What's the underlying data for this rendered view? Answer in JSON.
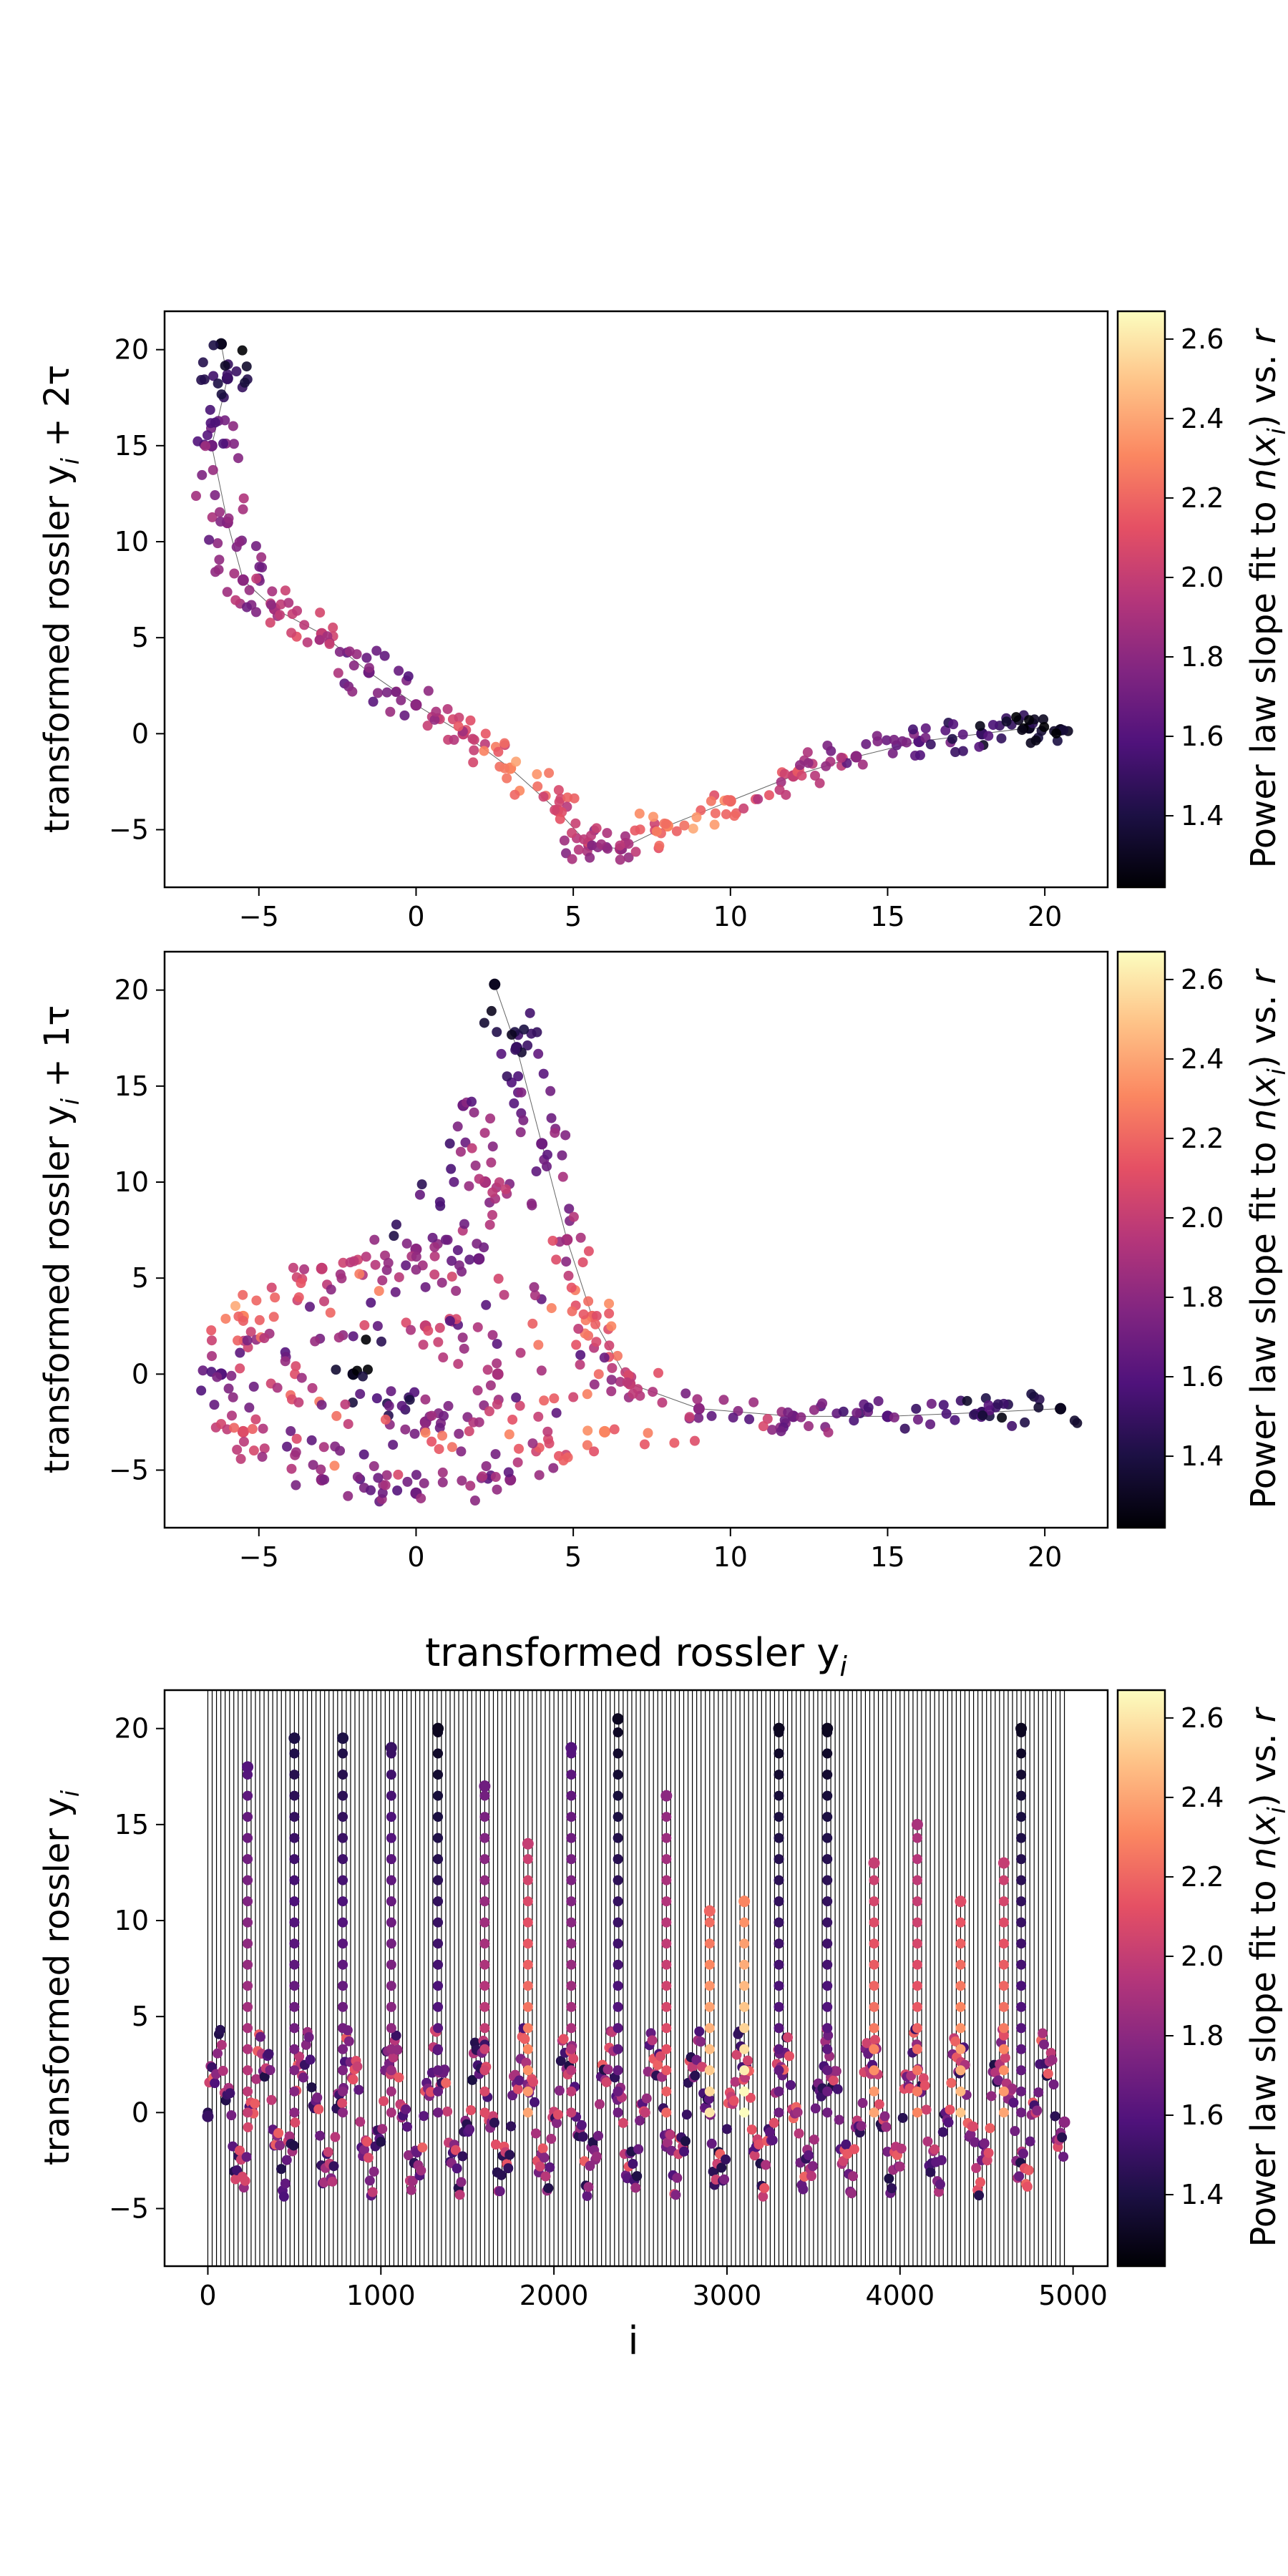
{
  "chart_data": [
    {
      "type": "scatter",
      "title": "",
      "xlabel": "",
      "ylabel": "transformed rossler y_i + 2τ",
      "ylabel_parts": [
        "transformed rossler y",
        "i",
        " + 2τ"
      ],
      "xlim": [
        -8,
        22
      ],
      "ylim": [
        -8,
        22
      ],
      "xticks": [
        -5,
        0,
        5,
        10,
        15,
        20
      ],
      "yticks": [
        -5,
        0,
        5,
        10,
        15,
        20
      ],
      "xtick_labels": [
        "−5",
        "0",
        "5",
        "10",
        "15",
        "20"
      ],
      "ytick_labels": [
        "−5",
        "0",
        "5",
        "10",
        "15",
        "20"
      ],
      "series": [
        {
          "points": [
            [
              -6.2,
              20.3
            ],
            [
              -6.0,
              18.5
            ],
            [
              -6.5,
              15.0
            ],
            [
              -6.0,
              11.0
            ],
            [
              -5.5,
              8.0
            ],
            [
              -4.5,
              6.5
            ],
            [
              -3.0,
              5.2
            ],
            [
              -1.5,
              3.2
            ],
            [
              0.0,
              1.5
            ],
            [
              1.5,
              0.0
            ],
            [
              3.0,
              -1.8
            ],
            [
              4.5,
              -4.0
            ],
            [
              5.5,
              -5.8
            ],
            [
              6.5,
              -6.0
            ],
            [
              8.0,
              -4.8
            ],
            [
              10.0,
              -3.5
            ],
            [
              12.0,
              -2.2
            ],
            [
              14.0,
              -1.2
            ],
            [
              16.0,
              -0.4
            ],
            [
              18.0,
              0.0
            ],
            [
              19.5,
              0.3
            ],
            [
              20.5,
              0.2
            ]
          ],
          "color_values": [
            1.3,
            1.5,
            1.7,
            1.8,
            1.8,
            1.9,
            2.0,
            1.7,
            1.8,
            2.0,
            2.3,
            2.1,
            1.9,
            1.9,
            2.3,
            2.2,
            2.0,
            1.8,
            1.6,
            1.5,
            1.3,
            1.3
          ]
        }
      ],
      "colorbar": {
        "label": "Power law slope fit to n(x_i) vs. r",
        "label_parts": [
          "Power law slope fit to ",
          "n",
          "(",
          "x",
          "i",
          ") vs. ",
          "r"
        ],
        "range": [
          1.22,
          2.67
        ],
        "ticks": [
          1.4,
          1.6,
          1.8,
          2.0,
          2.2,
          2.4,
          2.6
        ],
        "tick_labels": [
          "1.4",
          "1.6",
          "1.8",
          "2.0",
          "2.2",
          "2.4",
          "2.6"
        ],
        "colormap": "magma"
      }
    },
    {
      "type": "scatter",
      "title": "",
      "xlabel": "transformed rossler y_i",
      "xlabel_parts": [
        "transformed rossler y",
        "i"
      ],
      "ylabel": "transformed rossler y_i + 1τ",
      "ylabel_parts": [
        "transformed rossler y",
        "i",
        " + 1τ"
      ],
      "xlim": [
        -8,
        22
      ],
      "ylim": [
        -8,
        22
      ],
      "xticks": [
        -5,
        0,
        5,
        10,
        15,
        20
      ],
      "yticks": [
        -5,
        0,
        5,
        10,
        15,
        20
      ],
      "xtick_labels": [
        "−5",
        "0",
        "5",
        "10",
        "15",
        "20"
      ],
      "ytick_labels": [
        "−5",
        "0",
        "5",
        "10",
        "15",
        "20"
      ],
      "series": [
        {
          "points": [
            [
              2.5,
              20.3
            ],
            [
              3.2,
              17.0
            ],
            [
              4.0,
              12.0
            ],
            [
              4.8,
              7.0
            ],
            [
              5.6,
              3.0
            ],
            [
              6.8,
              -0.5
            ],
            [
              9.0,
              -1.8
            ],
            [
              12.0,
              -2.2
            ],
            [
              15.0,
              -2.2
            ],
            [
              18.0,
              -2.0
            ],
            [
              20.5,
              -1.8
            ],
            [
              6.0,
              -3.0
            ],
            [
              3.0,
              -5.5
            ],
            [
              0.0,
              -6.2
            ],
            [
              -3.0,
              -5.5
            ],
            [
              -5.5,
              -3.0
            ],
            [
              -6.2,
              0.0
            ],
            [
              -5.5,
              3.0
            ],
            [
              -3.0,
              5.5
            ],
            [
              0.0,
              6.5
            ],
            [
              2.0,
              6.0
            ],
            [
              2.2,
              10.0
            ],
            [
              1.5,
              14.0
            ],
            [
              -2.0,
              0.0
            ],
            [
              0.3,
              -2.5
            ],
            [
              2.6,
              0.0
            ],
            [
              0.3,
              2.5
            ]
          ],
          "color_values": [
            1.3,
            1.5,
            1.7,
            1.9,
            2.2,
            2.0,
            1.8,
            1.7,
            1.6,
            1.5,
            1.3,
            2.3,
            1.8,
            1.7,
            1.8,
            2.1,
            1.6,
            2.3,
            2.0,
            1.8,
            1.7,
            1.9,
            1.7,
            1.3,
            1.8,
            1.9,
            2.0
          ]
        }
      ],
      "colorbar": {
        "label": "Power law slope fit to n(x_i) vs. r",
        "label_parts": [
          "Power law slope fit to ",
          "n",
          "(",
          "x",
          "i",
          ") vs. ",
          "r"
        ],
        "range": [
          1.22,
          2.67
        ],
        "ticks": [
          1.4,
          1.6,
          1.8,
          2.0,
          2.2,
          2.4,
          2.6
        ],
        "tick_labels": [
          "1.4",
          "1.6",
          "1.8",
          "2.0",
          "2.2",
          "2.4",
          "2.6"
        ],
        "colormap": "magma"
      }
    },
    {
      "type": "scatter",
      "title": "",
      "xlabel": "i",
      "ylabel": "transformed rossler y_i",
      "ylabel_parts": [
        "transformed rossler y",
        "i"
      ],
      "xlim": [
        -250,
        5200
      ],
      "ylim": [
        -8,
        22
      ],
      "xticks": [
        0,
        1000,
        2000,
        3000,
        4000,
        5000
      ],
      "yticks": [
        -5,
        0,
        5,
        10,
        15,
        20
      ],
      "xtick_labels": [
        "0",
        "1000",
        "2000",
        "3000",
        "4000",
        "5000"
      ],
      "ytick_labels": [
        "−5",
        "0",
        "5",
        "10",
        "15",
        "20"
      ],
      "x_range": [
        0,
        4950
      ],
      "series": [
        {
          "x": [
            0,
            230,
            500,
            780,
            1060,
            1330,
            1600,
            1850,
            2100,
            2370,
            2650,
            2900,
            3100,
            3300,
            3580,
            3850,
            4100,
            4350,
            4600,
            4700,
            4950
          ],
          "y": [
            -0.2,
            18.0,
            19.5,
            19.5,
            19.0,
            20.0,
            17.0,
            14.0,
            19.0,
            20.5,
            16.5,
            10.5,
            11.0,
            20.0,
            20.0,
            13.0,
            15.0,
            11.0,
            13.0,
            20.0,
            -0.5
          ],
          "color_values": [
            1.5,
            1.6,
            1.4,
            1.4,
            1.5,
            1.3,
            1.7,
            2.0,
            1.6,
            1.3,
            1.8,
            2.2,
            2.3,
            1.3,
            1.3,
            2.0,
            1.9,
            2.1,
            2.0,
            1.3,
            1.8
          ]
        }
      ],
      "colorbar": {
        "label": "Power law slope fit to n(x_i) vs. r",
        "label_parts": [
          "Power law slope fit to ",
          "n",
          "(",
          "x",
          "i",
          ") vs. ",
          "r"
        ],
        "range": [
          1.22,
          2.67
        ],
        "ticks": [
          1.4,
          1.6,
          1.8,
          2.0,
          2.2,
          2.4,
          2.6
        ],
        "tick_labels": [
          "1.4",
          "1.6",
          "1.8",
          "2.0",
          "2.2",
          "2.4",
          "2.6"
        ],
        "colormap": "magma"
      }
    }
  ]
}
